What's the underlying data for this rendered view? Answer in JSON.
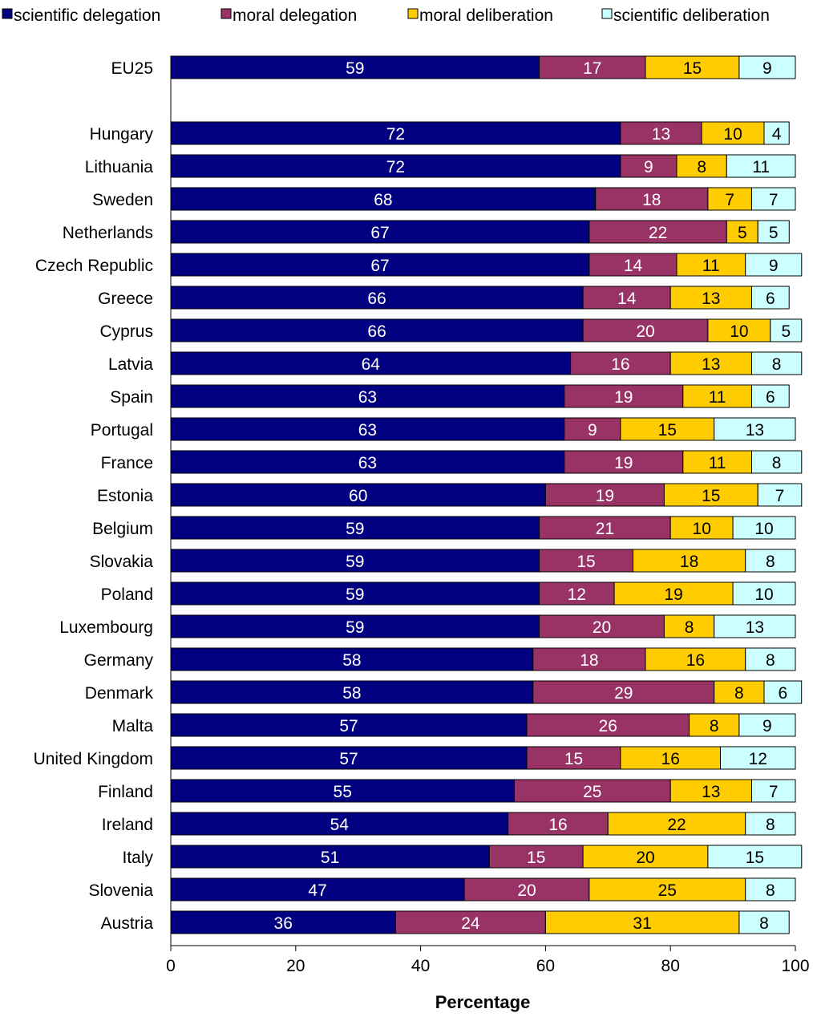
{
  "chart_data": {
    "type": "bar",
    "orientation": "horizontal",
    "stacked": true,
    "xlabel": "Percentage",
    "xlim": [
      0,
      100
    ],
    "xticks": [
      0,
      20,
      40,
      60,
      80,
      100
    ],
    "grid": false,
    "legend_position": "top",
    "categories": [
      "EU25",
      "Hungary",
      "Lithuania",
      "Sweden",
      "Netherlands",
      "Czech Republic",
      "Greece",
      "Cyprus",
      "Latvia",
      "Spain",
      "Portugal",
      "France",
      "Estonia",
      "Belgium",
      "Slovakia",
      "Poland",
      "Luxembourg",
      "Germany",
      "Denmark",
      "Malta",
      "United Kingdom",
      "Finland",
      "Ireland",
      "Italy",
      "Slovenia",
      "Austria"
    ],
    "series": [
      {
        "name": "scientific delegation",
        "color": "#000080",
        "label_color": "#ffffff",
        "values": [
          59,
          72,
          72,
          68,
          67,
          67,
          66,
          66,
          64,
          63,
          63,
          63,
          60,
          59,
          59,
          59,
          59,
          58,
          58,
          57,
          57,
          55,
          54,
          51,
          47,
          36
        ]
      },
      {
        "name": "moral delegation",
        "color": "#993366",
        "label_color": "#ffffff",
        "values": [
          17,
          13,
          9,
          18,
          22,
          14,
          14,
          20,
          16,
          19,
          9,
          19,
          19,
          21,
          15,
          12,
          20,
          18,
          29,
          26,
          15,
          25,
          16,
          15,
          20,
          24
        ]
      },
      {
        "name": "moral deliberation",
        "color": "#ffcc00",
        "label_color": "#000000",
        "values": [
          15,
          10,
          8,
          7,
          5,
          11,
          13,
          10,
          13,
          11,
          15,
          11,
          15,
          10,
          18,
          19,
          8,
          16,
          8,
          8,
          16,
          13,
          22,
          20,
          25,
          31
        ]
      },
      {
        "name": "scientific deliberation",
        "color": "#ccffff",
        "label_color": "#000000",
        "values": [
          9,
          4,
          11,
          7,
          5,
          9,
          6,
          5,
          8,
          6,
          13,
          8,
          7,
          10,
          8,
          10,
          13,
          8,
          6,
          9,
          12,
          7,
          8,
          15,
          8,
          8
        ]
      }
    ]
  }
}
